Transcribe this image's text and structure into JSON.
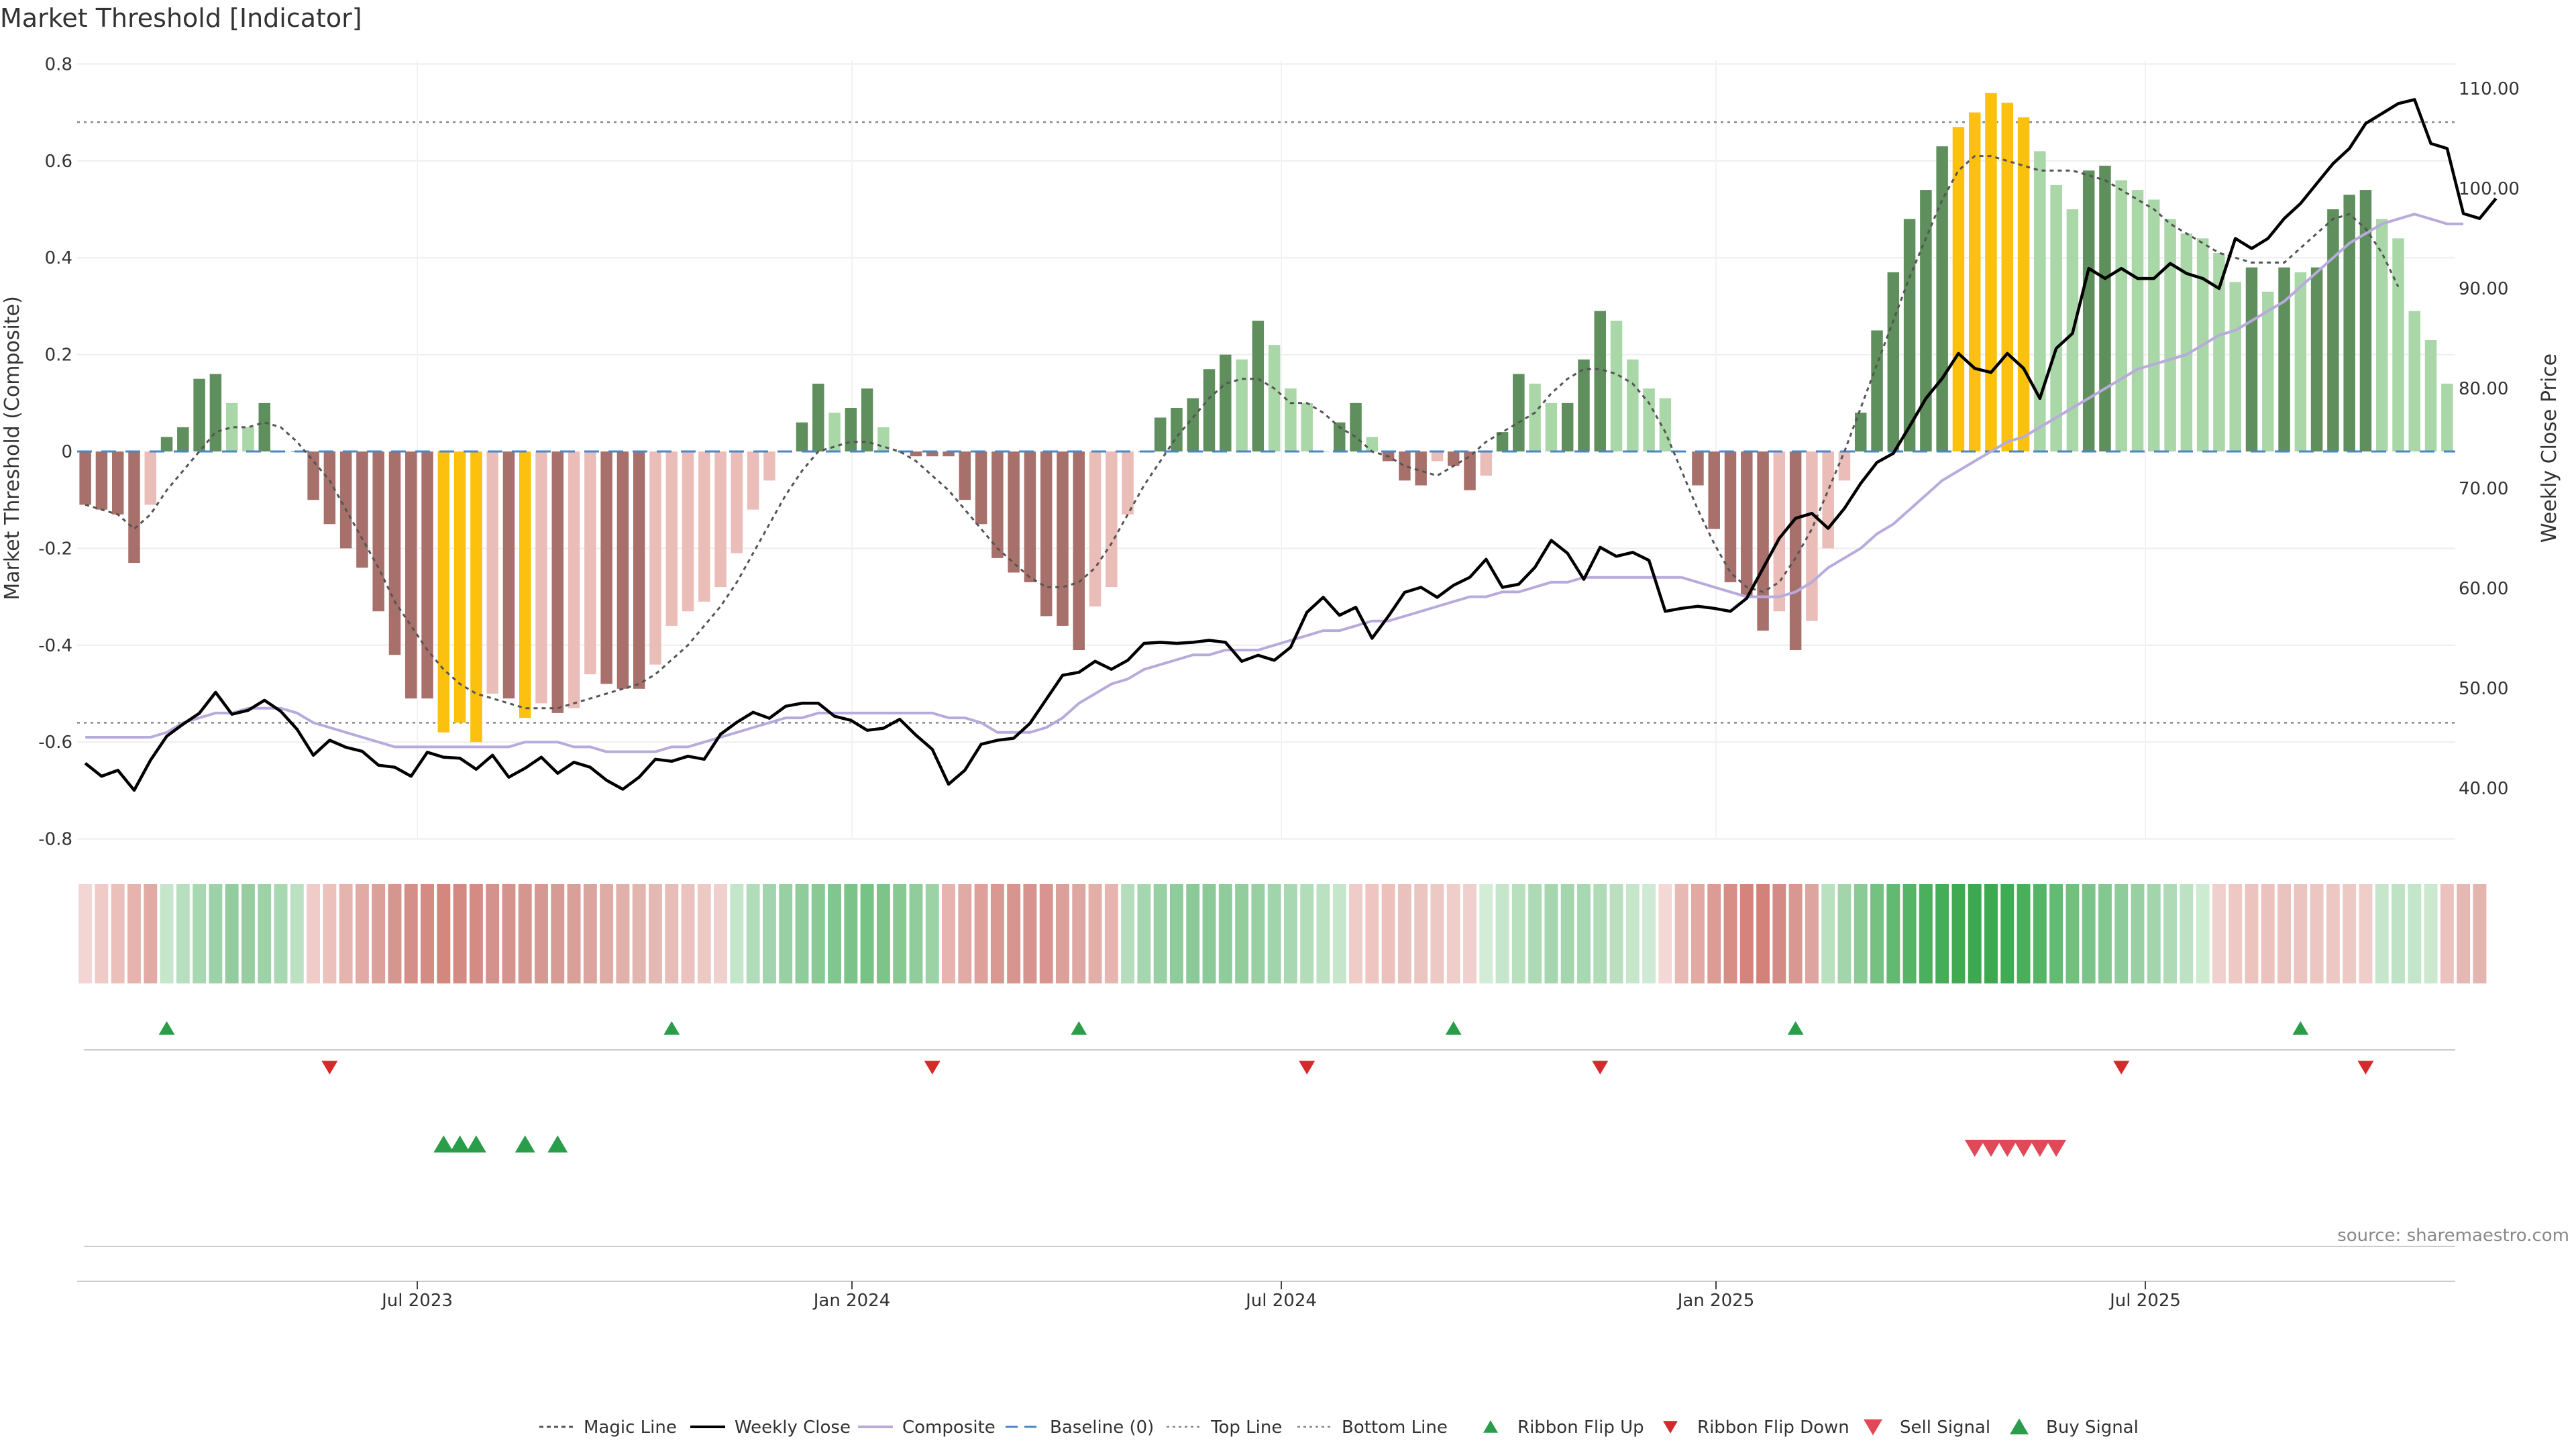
{
  "chart_data": {
    "type": "bar",
    "title": "Market Threshold [Indicator]",
    "ylabel": "Market Threshold (Composite)",
    "y2label": "Weekly Close Price",
    "ylim": [
      -0.8,
      0.8
    ],
    "y2lim": [
      40,
      110
    ],
    "yticks": [
      "0.8",
      "0.6",
      "0.4",
      "0.2",
      "0",
      "-0.2",
      "-0.4",
      "-0.6",
      "-0.8"
    ],
    "y2ticks": [
      "110.00",
      "100.00",
      "90.00",
      "80.00",
      "70.00",
      "60.00",
      "50.00",
      "40.00"
    ],
    "xticks": [
      "Jul 2023",
      "Jan 2024",
      "Jul 2024",
      "Jan 2025",
      "Jul 2025"
    ],
    "top_line": 0.68,
    "bottom_line": -0.56,
    "source": "source: sharemaestro.com",
    "legend": [
      "Magic Line",
      "Weekly Close",
      "Composite",
      "Baseline (0)",
      "Top Line",
      "Bottom Line",
      "Ribbon Flip Up",
      "Ribbon Flip Down",
      "Sell Signal",
      "Buy Signal"
    ],
    "bars": [
      -0.11,
      -0.12,
      -0.13,
      -0.23,
      -0.11,
      0.03,
      0.05,
      0.15,
      0.16,
      0.1,
      0.05,
      0.1,
      0.0,
      0.0,
      -0.1,
      -0.15,
      -0.2,
      -0.24,
      -0.33,
      -0.42,
      -0.51,
      -0.51,
      -0.58,
      -0.56,
      -0.6,
      -0.5,
      -0.51,
      -0.55,
      -0.52,
      -0.54,
      -0.53,
      -0.46,
      -0.48,
      -0.49,
      -0.49,
      -0.44,
      -0.36,
      -0.33,
      -0.31,
      -0.28,
      -0.21,
      -0.12,
      -0.06,
      0.0,
      0.06,
      0.14,
      0.08,
      0.09,
      0.13,
      0.05,
      0.0,
      -0.01,
      -0.01,
      -0.01,
      -0.1,
      -0.15,
      -0.22,
      -0.25,
      -0.27,
      -0.34,
      -0.36,
      -0.41,
      -0.32,
      -0.28,
      -0.13,
      0.0,
      0.07,
      0.09,
      0.11,
      0.17,
      0.2,
      0.19,
      0.27,
      0.22,
      0.13,
      0.1,
      0.0,
      0.06,
      0.1,
      0.03,
      -0.02,
      -0.06,
      -0.07,
      -0.02,
      -0.03,
      -0.08,
      -0.05,
      0.04,
      0.16,
      0.14,
      0.1,
      0.1,
      0.19,
      0.29,
      0.27,
      0.19,
      0.13,
      0.11,
      0.0,
      -0.07,
      -0.16,
      -0.27,
      -0.3,
      -0.37,
      -0.33,
      -0.41,
      -0.35,
      -0.2,
      -0.06,
      0.08,
      0.25,
      0.37,
      0.48,
      0.54,
      0.63,
      0.67,
      0.7,
      0.74,
      0.72,
      0.69,
      0.62,
      0.55,
      0.5,
      0.58,
      0.59,
      0.56,
      0.54,
      0.52,
      0.48,
      0.45,
      0.44,
      0.41,
      0.35,
      0.38,
      0.33,
      0.38,
      0.37,
      0.38,
      0.5,
      0.53,
      0.54,
      0.48,
      0.44,
      0.29,
      0.23,
      0.14
    ],
    "composite": [
      -0.59,
      -0.59,
      -0.59,
      -0.59,
      -0.59,
      -0.58,
      -0.56,
      -0.55,
      -0.54,
      -0.54,
      -0.53,
      -0.53,
      -0.53,
      -0.54,
      -0.56,
      -0.57,
      -0.58,
      -0.59,
      -0.6,
      -0.61,
      -0.61,
      -0.61,
      -0.61,
      -0.61,
      -0.61,
      -0.61,
      -0.61,
      -0.6,
      -0.6,
      -0.6,
      -0.61,
      -0.61,
      -0.62,
      -0.62,
      -0.62,
      -0.62,
      -0.61,
      -0.61,
      -0.6,
      -0.59,
      -0.58,
      -0.57,
      -0.56,
      -0.55,
      -0.55,
      -0.54,
      -0.54,
      -0.54,
      -0.54,
      -0.54,
      -0.54,
      -0.54,
      -0.54,
      -0.55,
      -0.55,
      -0.56,
      -0.58,
      -0.58,
      -0.58,
      -0.57,
      -0.55,
      -0.52,
      -0.5,
      -0.48,
      -0.47,
      -0.45,
      -0.44,
      -0.43,
      -0.42,
      -0.42,
      -0.41,
      -0.41,
      -0.41,
      -0.4,
      -0.39,
      -0.38,
      -0.37,
      -0.37,
      -0.36,
      -0.35,
      -0.35,
      -0.34,
      -0.33,
      -0.32,
      -0.31,
      -0.3,
      -0.3,
      -0.29,
      -0.29,
      -0.28,
      -0.27,
      -0.27,
      -0.26,
      -0.26,
      -0.26,
      -0.26,
      -0.26,
      -0.26,
      -0.26,
      -0.27,
      -0.28,
      -0.29,
      -0.3,
      -0.3,
      -0.3,
      -0.29,
      -0.27,
      -0.24,
      -0.22,
      -0.2,
      -0.17,
      -0.15,
      -0.12,
      -0.09,
      -0.06,
      -0.04,
      -0.02,
      0.0,
      0.02,
      0.03,
      0.05,
      0.07,
      0.09,
      0.11,
      0.13,
      0.15,
      0.17,
      0.18,
      0.19,
      0.2,
      0.22,
      0.24,
      0.25,
      0.27,
      0.29,
      0.31,
      0.34,
      0.37,
      0.4,
      0.43,
      0.45,
      0.47,
      0.48,
      0.49,
      0.48,
      0.47,
      0.47
    ],
    "magic": [
      -0.11,
      -0.12,
      -0.13,
      -0.16,
      -0.13,
      -0.08,
      -0.04,
      0.0,
      0.04,
      0.05,
      0.05,
      0.06,
      0.05,
      0.02,
      -0.02,
      -0.06,
      -0.12,
      -0.18,
      -0.24,
      -0.31,
      -0.36,
      -0.41,
      -0.45,
      -0.48,
      -0.5,
      -0.51,
      -0.52,
      -0.53,
      -0.53,
      -0.53,
      -0.52,
      -0.51,
      -0.5,
      -0.49,
      -0.48,
      -0.46,
      -0.43,
      -0.4,
      -0.36,
      -0.32,
      -0.27,
      -0.21,
      -0.15,
      -0.09,
      -0.04,
      0.0,
      0.01,
      0.02,
      0.02,
      0.01,
      0.0,
      -0.02,
      -0.05,
      -0.08,
      -0.12,
      -0.16,
      -0.2,
      -0.23,
      -0.26,
      -0.28,
      -0.28,
      -0.27,
      -0.24,
      -0.19,
      -0.13,
      -0.07,
      -0.02,
      0.03,
      0.07,
      0.11,
      0.14,
      0.15,
      0.15,
      0.13,
      0.1,
      0.1,
      0.08,
      0.05,
      0.03,
      0.0,
      -0.01,
      -0.03,
      -0.04,
      -0.05,
      -0.03,
      -0.01,
      0.02,
      0.04,
      0.06,
      0.08,
      0.12,
      0.15,
      0.17,
      0.17,
      0.16,
      0.14,
      0.1,
      0.04,
      -0.04,
      -0.12,
      -0.19,
      -0.25,
      -0.28,
      -0.29,
      -0.27,
      -0.22,
      -0.16,
      -0.08,
      0.0,
      0.09,
      0.18,
      0.27,
      0.36,
      0.44,
      0.52,
      0.58,
      0.61,
      0.61,
      0.6,
      0.59,
      0.58,
      0.58,
      0.58,
      0.57,
      0.56,
      0.54,
      0.52,
      0.5,
      0.47,
      0.45,
      0.43,
      0.41,
      0.4,
      0.39,
      0.39,
      0.39,
      0.42,
      0.45,
      0.48,
      0.49,
      0.46,
      0.41,
      0.34
    ],
    "weekly_close": [
      42.5,
      41.2,
      41.8,
      39.8,
      42.8,
      45.2,
      46.4,
      47.5,
      49.6,
      47.4,
      47.8,
      48.8,
      47.7,
      45.9,
      43.3,
      44.8,
      44.1,
      43.7,
      42.3,
      42.1,
      41.2,
      43.6,
      43.1,
      43.0,
      41.9,
      43.3,
      41.1,
      42.0,
      43.1,
      41.5,
      42.6,
      42.1,
      40.8,
      39.9,
      41.1,
      42.9,
      42.7,
      43.2,
      42.9,
      45.4,
      46.6,
      47.6,
      47.0,
      48.2,
      48.5,
      48.5,
      47.2,
      46.8,
      45.8,
      46.0,
      46.9,
      45.3,
      43.9,
      40.4,
      41.8,
      44.4,
      44.8,
      45.0,
      46.5,
      48.9,
      51.3,
      51.6,
      52.7,
      51.9,
      52.8,
      54.5,
      54.6,
      54.5,
      54.6,
      54.8,
      54.6,
      52.7,
      53.3,
      52.8,
      54.1,
      57.6,
      59.1,
      57.3,
      58.1,
      55.0,
      57.2,
      59.6,
      60.1,
      59.1,
      60.3,
      61.1,
      62.9,
      60.1,
      60.4,
      62.1,
      64.8,
      63.5,
      60.9,
      64.1,
      63.2,
      63.6,
      62.8,
      57.7,
      58.0,
      58.2,
      58.0,
      57.7,
      59.0,
      62.0,
      65.0,
      67.0,
      67.5,
      66.0,
      68.0,
      70.5,
      72.6,
      73.5,
      76.2,
      79.0,
      81.0,
      83.5,
      82.0,
      81.6,
      83.5,
      82.0,
      79.0,
      84.0,
      85.5,
      92.0,
      91.0,
      92.0,
      91.0,
      91.0,
      92.5,
      91.5,
      91.0,
      90.0,
      95.0,
      94.0,
      95.0,
      97.0,
      98.5,
      100.5,
      102.5,
      104.0,
      106.5,
      107.5,
      108.5,
      108.9,
      104.5,
      104.0,
      97.5,
      97.0,
      99.0
    ],
    "ribbon_colors": [
      "#f3d6d4",
      "#efcac6",
      "#ebbfba",
      "#e6b3ae",
      "#e1aaa4",
      "#c5e6cb",
      "#b7dfbf",
      "#a8d8b2",
      "#9dd2a8",
      "#93cd9f",
      "#96ce9f",
      "#9dd2a8",
      "#a8d8b2",
      "#bbe1c2",
      "#f0ccc8",
      "#ecc0bb",
      "#e6b4ae",
      "#e2aaa4",
      "#dca09a",
      "#d69690",
      "#d38f88",
      "#d38b84",
      "#d3877f",
      "#d38a83",
      "#d48b84",
      "#d3928b",
      "#d4938c",
      "#d59690",
      "#d69892",
      "#d79b95",
      "#d99f99",
      "#dba59f",
      "#deaba5",
      "#e0b0aa",
      "#e2b5af",
      "#e4b9b3",
      "#e7bdb8",
      "#eac3be",
      "#edc9c4",
      "#f0d0cc",
      "#c3e5c9",
      "#b1dcb9",
      "#a1d4ac",
      "#98d0a3",
      "#8fcc9b",
      "#88c994",
      "#81c68e",
      "#7bc389",
      "#77c285",
      "#7dc48a",
      "#87c893",
      "#91cc9c",
      "#9dd2a7",
      "#e6b3ae",
      "#e2aaa4",
      "#dea09a",
      "#da9893",
      "#d8948e",
      "#d7938d",
      "#d8958f",
      "#daa09a",
      "#dea7a1",
      "#e2aea8",
      "#e6b5b0",
      "#b5ddbc",
      "#a6d6b0",
      "#98d0a3",
      "#8fcc9b",
      "#8bca98",
      "#8bca98",
      "#8fcc9b",
      "#92cd9e",
      "#98d0a3",
      "#a0d4aa",
      "#a8d8b2",
      "#b3dcb9",
      "#bce1c2",
      "#c5e6cb",
      "#f0ccc8",
      "#eec5c1",
      "#ecc0bb",
      "#eac2bd",
      "#ebc6c1",
      "#edc9c4",
      "#efcdc9",
      "#f0d0cc",
      "#d2ecd6",
      "#c5e6cb",
      "#b8e0bf",
      "#aed9b5",
      "#a6d6b0",
      "#a4d5ad",
      "#a8d8b2",
      "#b0dbb7",
      "#badfbf",
      "#c5e6cb",
      "#cfead4",
      "#f3d8d5",
      "#e8b8b3",
      "#e2a9a3",
      "#dc9b95",
      "#d68e87",
      "#d4847c",
      "#d3827a",
      "#d38c85",
      "#d89891",
      "#dda59f",
      "#b9e0bf",
      "#a2d5ab",
      "#8acb95",
      "#74c181",
      "#62b971",
      "#55b466",
      "#4bb05d",
      "#45ac57",
      "#40aa53",
      "#3ea851",
      "#3ea851",
      "#41aa54",
      "#49af5b",
      "#55b466",
      "#63ba72",
      "#71c07e",
      "#7bc389",
      "#85c791",
      "#8fcc9b",
      "#98d0a3",
      "#a2d5ab",
      "#afdab6",
      "#bde2c3",
      "#ccebd1",
      "#f0d0cc",
      "#eec8c3",
      "#ecc3be",
      "#ebc2bd",
      "#ebc3be",
      "#ecc4bf",
      "#ecc6c1",
      "#edc8c3",
      "#edc9c4",
      "#efcdc9",
      "#c5e6cb",
      "#bee3c4",
      "#c3e5c9",
      "#cce9d0",
      "#eac3be",
      "#e6b8b3",
      "#e4b4ae"
    ],
    "ribbon_flip_up": [
      5,
      36,
      61,
      84,
      105,
      136
    ],
    "ribbon_flip_down": [
      15,
      52,
      75,
      93,
      125,
      140
    ],
    "buy_signal": [
      22,
      23,
      24,
      27,
      29
    ],
    "sell_signal": [
      116,
      117,
      118,
      119,
      120,
      121
    ]
  },
  "colors": {
    "bar_pos_strong": "#5e8f5c",
    "bar_pos_weak": "#a9d7a7",
    "bar_neg_strong": "#a8706b",
    "bar_neg_weak": "#ebbdb8",
    "bar_extreme": "#fbc10e",
    "weekly_close": "#000000",
    "composite": "#b8abdc",
    "baseline": "#4a86c5",
    "magic": "#555555",
    "flip_up": "#2a9d4a",
    "flip_down": "#d62a2a",
    "buy": "#2a9d4a",
    "sell": "#e04a58"
  }
}
